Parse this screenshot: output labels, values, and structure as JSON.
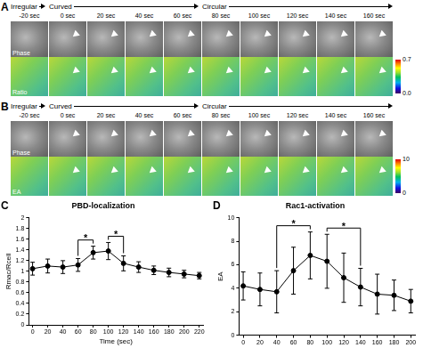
{
  "figure": {
    "panels": [
      {
        "label": "A",
        "stages": [
          {
            "text": "Irregular",
            "frame": 0
          },
          {
            "text": "Curved",
            "frame": 1
          },
          {
            "text": "Circular",
            "frame": 5
          }
        ],
        "times": [
          "-20 sec",
          "0 sec",
          "20 sec",
          "40 sec",
          "60 sec",
          "80 sec",
          "100 sec",
          "120 sec",
          "140 sec",
          "160 sec"
        ],
        "rows": [
          "Phase",
          "Ratio"
        ],
        "colorbar": {
          "range": [
            0,
            0.7
          ],
          "ticks": [
            0.7,
            {
              "value": 0,
              "label": "0.0"
            }
          ]
        }
      },
      {
        "label": "B",
        "stages": [
          {
            "text": "Irregular",
            "frame": 0
          },
          {
            "text": "Curved",
            "frame": 1
          },
          {
            "text": "Circular",
            "frame": 5
          }
        ],
        "times": [
          "-20 sec",
          "0 sec",
          "20 sec",
          "40 sec",
          "60 sec",
          "80 sec",
          "100 sec",
          "120 sec",
          "140 sec",
          "160 sec"
        ],
        "rows": [
          "Phase",
          "EA"
        ],
        "colorbar": {
          "range": [
            0,
            10
          ],
          "ticks": [
            10,
            0
          ]
        }
      }
    ],
    "chart_labels": [
      "C",
      "D"
    ]
  },
  "chart_data": [
    {
      "type": "line",
      "title": "PBD-localization",
      "x_label": "Time (sec)",
      "y_label": "Rmac/Rcell",
      "x": [
        0,
        20,
        40,
        60,
        80,
        100,
        120,
        140,
        160,
        180,
        200,
        220
      ],
      "values": [
        1.05,
        1.1,
        1.08,
        1.12,
        1.35,
        1.38,
        1.15,
        1.08,
        1.02,
        0.98,
        0.95,
        0.92
      ],
      "errors": [
        0.12,
        0.13,
        0.12,
        0.12,
        0.12,
        0.16,
        0.14,
        0.1,
        0.08,
        0.08,
        0.07,
        0.06
      ],
      "significance": [
        {
          "from": 60,
          "to": 80,
          "text": "*"
        },
        {
          "from": 100,
          "to": 120,
          "text": "*"
        }
      ],
      "color": "#000000",
      "marker": "circle",
      "grid": false,
      "xlim": [
        -5,
        225
      ],
      "xticks": [
        0,
        20,
        40,
        60,
        80,
        100,
        120,
        140,
        160,
        180,
        200,
        220
      ],
      "ylim": [
        0,
        2
      ],
      "yticks": [
        0,
        0.2,
        0.4,
        0.6,
        0.8,
        1,
        1.2,
        1.4,
        1.6,
        1.8,
        2
      ]
    },
    {
      "type": "line",
      "title": "Rac1-activation",
      "y_label": "EA",
      "x": [
        0,
        20,
        40,
        60,
        80,
        100,
        120,
        140,
        160,
        180,
        200
      ],
      "values": [
        4.2,
        3.9,
        3.7,
        5.5,
        6.8,
        6.3,
        4.9,
        4.1,
        3.5,
        3.4,
        2.9
      ],
      "errors": [
        1.2,
        1.4,
        1.8,
        2.0,
        2.0,
        2.3,
        2.1,
        1.6,
        1.7,
        1.3,
        1.0
      ],
      "significance": [
        {
          "from": 40,
          "to": 80,
          "text": "*"
        },
        {
          "from": 100,
          "to": 140,
          "text": "*"
        }
      ],
      "color": "#000000",
      "marker": "circle",
      "grid": false,
      "xlim": [
        -5,
        205
      ],
      "xticks": [
        0,
        20,
        40,
        60,
        80,
        100,
        120,
        140,
        160,
        180,
        200
      ],
      "ylim": [
        0,
        10
      ],
      "yticks": [
        0,
        2,
        4,
        6,
        8,
        10
      ]
    }
  ]
}
